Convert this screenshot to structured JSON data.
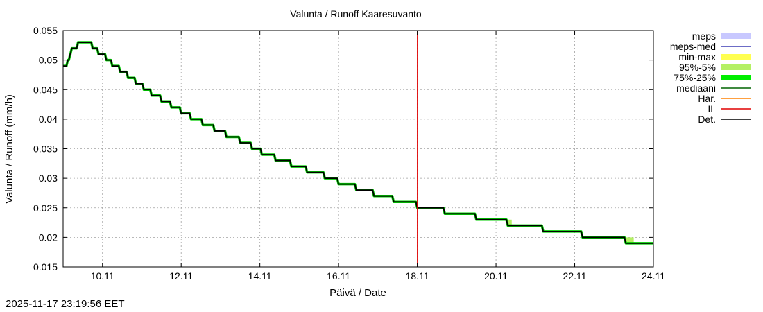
{
  "chart_data": {
    "type": "line",
    "title": "Valunta / Runoff  Kaaresuvanto",
    "xlabel": "Päivä / Date",
    "ylabel": "Valunta / Runoff (mm/h)",
    "x_unit": "day of November 2025 (fractional)",
    "xlim": [
      9.0,
      24.0
    ],
    "ylim": [
      0.015,
      0.055
    ],
    "grid": true,
    "legend_placement": "right",
    "x_ticks": [
      {
        "value": 10,
        "label": "10.11"
      },
      {
        "value": 12,
        "label": "12.11"
      },
      {
        "value": 14,
        "label": "14.11"
      },
      {
        "value": 16,
        "label": "16.11"
      },
      {
        "value": 18,
        "label": "18.11"
      },
      {
        "value": 20,
        "label": "20.11"
      },
      {
        "value": 22,
        "label": "22.11"
      },
      {
        "value": 24,
        "label": "24.11"
      }
    ],
    "y_ticks": [
      {
        "value": 0.055,
        "label": "0.055"
      },
      {
        "value": 0.05,
        "label": "0.05"
      },
      {
        "value": 0.045,
        "label": "0.045"
      },
      {
        "value": 0.04,
        "label": "0.04"
      },
      {
        "value": 0.035,
        "label": "0.035"
      },
      {
        "value": 0.03,
        "label": "0.03"
      },
      {
        "value": 0.025,
        "label": "0.025"
      },
      {
        "value": 0.02,
        "label": "0.02"
      },
      {
        "value": 0.015,
        "label": "0.015"
      }
    ],
    "legend": [
      {
        "label": "meps",
        "color": "#c8c8ff",
        "style": "band"
      },
      {
        "label": "meps-med",
        "color": "#3c3cb4",
        "style": "line"
      },
      {
        "label": "min-max",
        "color": "#ffff50",
        "style": "band"
      },
      {
        "label": "95%-5%",
        "color": "#b4f064",
        "style": "band"
      },
      {
        "label": "75%-25%",
        "color": "#00ee00",
        "style": "band"
      },
      {
        "label": "mediaani",
        "color": "#006400",
        "style": "line"
      },
      {
        "label": "Har.",
        "color": "#ff8000",
        "style": "line"
      },
      {
        "label": "IL",
        "color": "#e00000",
        "style": "line"
      },
      {
        "label": "Det.",
        "color": "#000000",
        "style": "line"
      }
    ],
    "il_vline": {
      "x": 18.0,
      "color": "#e00000"
    },
    "series": [
      {
        "name": "Det.",
        "color": "#000000",
        "x": [
          9.0,
          9.08,
          9.12,
          9.18,
          9.22,
          9.3,
          9.38,
          9.5,
          9.75,
          9.9,
          10.1,
          10.25,
          10.45,
          10.65,
          10.85,
          11.05,
          11.25,
          11.5,
          11.75,
          12.0,
          12.25,
          12.55,
          12.85,
          13.15,
          13.5,
          13.8,
          14.05,
          14.4,
          14.8,
          15.2,
          15.65,
          16.0,
          16.45,
          16.9,
          17.4,
          18.0,
          18.7,
          19.5,
          20.3,
          21.2,
          22.2,
          23.3,
          24.0
        ],
        "y": [
          0.049,
          0.049,
          0.05,
          0.051,
          0.052,
          0.052,
          0.053,
          0.053,
          0.052,
          0.051,
          0.05,
          0.049,
          0.048,
          0.047,
          0.046,
          0.045,
          0.044,
          0.043,
          0.042,
          0.041,
          0.04,
          0.039,
          0.038,
          0.037,
          0.036,
          0.035,
          0.034,
          0.033,
          0.032,
          0.031,
          0.03,
          0.029,
          0.028,
          0.027,
          0.026,
          0.025,
          0.024,
          0.023,
          0.022,
          0.021,
          0.02,
          0.019,
          0.019
        ]
      }
    ],
    "bands": [
      {
        "name": "95%-5%",
        "color": "#b4f064",
        "x_start": 20.25,
        "x_end": 20.4,
        "y_low": 0.022,
        "y_high": 0.023
      },
      {
        "name": "95%-5%",
        "color": "#b4f064",
        "x_start": 23.3,
        "x_end": 23.5,
        "y_low": 0.019,
        "y_high": 0.02
      },
      {
        "name": "75%-25%",
        "color": "#00ee00",
        "x_start": 18.0,
        "x_end": 24.0,
        "y_low": 0.019,
        "y_high": 0.025
      }
    ]
  },
  "footer": {
    "timestamp": "2025-11-17 23:19:56 EET"
  }
}
